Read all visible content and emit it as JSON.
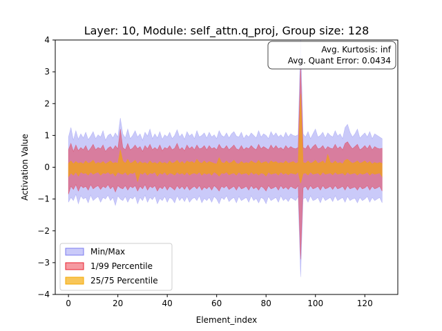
{
  "chart_data": {
    "type": "area",
    "title": "Layer: 10, Module: self_attn.q_proj,  Group size: 128",
    "xlabel": "Element_index",
    "ylabel": "Activation Value",
    "xlim": [
      -5.35,
      133.35
    ],
    "ylim": [
      -4,
      4
    ],
    "xticks": [
      0,
      20,
      40,
      60,
      80,
      100,
      120
    ],
    "yticks": [
      -4,
      -3,
      -2,
      -1,
      0,
      1,
      2,
      3,
      4
    ],
    "xtick_labels": [
      "0",
      "20",
      "40",
      "60",
      "80",
      "100",
      "120"
    ],
    "ytick_labels": [
      "−4",
      "−3",
      "−2",
      "−1",
      "0",
      "1",
      "2",
      "3",
      "4"
    ],
    "grid": false,
    "legend_position": "lower-left",
    "annotation": {
      "line1": "Avg. Kurtosis: inf",
      "line2": "Avg. Quant Error: 0.0434",
      "position": "top-right"
    },
    "series": [
      {
        "name": "Min/Max",
        "color": "#7b7bf0",
        "alpha": 0.4,
        "upper": [
          0.95,
          1.25,
          0.85,
          1.15,
          0.88,
          1.05,
          0.92,
          1.1,
          0.87,
          0.98,
          1.12,
          0.9,
          1.02,
          0.95,
          1.15,
          0.85,
          1.0,
          1.05,
          0.92,
          1.08,
          0.95,
          1.55,
          1.05,
          0.92,
          1.2,
          0.9,
          1.0,
          1.15,
          0.95,
          1.05,
          0.85,
          1.1,
          0.98,
          1.2,
          0.9,
          1.05,
          0.92,
          1.12,
          0.88,
          1.02,
          0.95,
          1.1,
          0.9,
          1.0,
          1.18,
          0.95,
          1.05,
          0.88,
          1.12,
          0.98,
          1.05,
          0.9,
          1.15,
          0.95,
          1.0,
          1.08,
          0.92,
          1.1,
          0.95,
          1.02,
          0.9,
          1.15,
          1.0,
          0.95,
          1.08,
          0.92,
          1.05,
          1.12,
          0.98,
          0.95,
          1.1,
          0.9,
          1.02,
          0.95,
          1.08,
          1.0,
          0.92,
          1.15,
          0.95,
          1.05,
          1.0,
          0.9,
          1.12,
          0.98,
          1.08,
          0.95,
          1.02,
          0.92,
          1.1,
          0.95,
          1.05,
          1.0,
          0.98,
          1.02,
          4.0,
          1.05,
          0.95,
          1.12,
          0.9,
          1.05,
          1.2,
          0.95,
          1.0,
          1.1,
          0.92,
          1.08,
          1.0,
          0.95,
          1.15,
          0.98,
          1.05,
          0.9,
          1.25,
          1.35,
          1.1,
          0.95,
          1.05,
          1.2,
          0.92,
          1.0,
          1.08,
          0.95,
          1.12,
          0.9,
          1.05,
          1.0,
          0.95,
          0.9
        ],
        "lower": [
          -1.1,
          -0.95,
          -1.05,
          -0.85,
          -1.15,
          -0.9,
          -1.0,
          -0.95,
          -1.12,
          -0.88,
          -1.05,
          -0.98,
          -0.92,
          -1.1,
          -0.95,
          -1.0,
          -0.88,
          -1.05,
          -0.95,
          -1.2,
          -0.9,
          -1.0,
          -1.05,
          -0.92,
          -1.1,
          -0.95,
          -1.0,
          -0.9,
          -1.15,
          -0.95,
          -1.05,
          -0.88,
          -1.1,
          -0.95,
          -1.02,
          -0.9,
          -1.15,
          -0.98,
          -1.05,
          -0.92,
          -1.1,
          -0.95,
          -1.0,
          -1.12,
          -0.9,
          -1.05,
          -0.95,
          -1.08,
          -0.92,
          -1.1,
          -1.0,
          -0.95,
          -1.05,
          -0.9,
          -1.12,
          -0.98,
          -1.05,
          -0.95,
          -1.1,
          -0.92,
          -1.0,
          -1.15,
          -0.95,
          -1.02,
          -0.9,
          -1.08,
          -1.0,
          -0.95,
          -1.12,
          -0.92,
          -1.05,
          -1.0,
          -0.95,
          -1.1,
          -0.9,
          -1.05,
          -0.98,
          -1.12,
          -0.95,
          -1.0,
          -1.15,
          -0.92,
          -1.05,
          -1.0,
          -0.95,
          -1.1,
          -0.9,
          -1.05,
          -0.98,
          -1.08,
          -0.95,
          -1.0,
          -1.05,
          -0.92,
          -3.45,
          -1.0,
          -0.95,
          -1.1,
          -0.9,
          -1.05,
          -1.02,
          -0.95,
          -1.12,
          -0.92,
          -1.05,
          -1.0,
          -0.95,
          -1.08,
          -0.9,
          -1.05,
          -1.0,
          -0.95,
          -1.1,
          -0.92,
          -1.05,
          -1.0,
          -0.98,
          -1.12,
          -0.95,
          -1.05,
          -1.0,
          -0.92,
          -1.1,
          -0.95,
          -1.05,
          -1.0,
          -0.95,
          -1.12
        ]
      },
      {
        "name": "1/99 Percentile",
        "color": "#e8202e",
        "alpha": 0.45,
        "upper": [
          0.55,
          0.75,
          0.5,
          0.7,
          0.52,
          0.62,
          0.55,
          0.68,
          0.5,
          0.6,
          0.72,
          0.55,
          0.62,
          0.58,
          0.7,
          0.5,
          0.6,
          0.65,
          0.55,
          0.68,
          0.58,
          1.2,
          0.62,
          0.55,
          0.75,
          0.55,
          0.6,
          0.7,
          0.58,
          0.65,
          0.5,
          0.68,
          0.58,
          0.72,
          0.55,
          0.62,
          0.55,
          0.7,
          0.52,
          0.62,
          0.58,
          0.68,
          0.55,
          0.6,
          0.75,
          0.55,
          0.62,
          0.52,
          0.7,
          0.58,
          0.65,
          0.55,
          0.7,
          0.58,
          0.6,
          0.68,
          0.55,
          0.68,
          0.58,
          0.62,
          0.55,
          0.72,
          0.6,
          0.58,
          0.68,
          0.55,
          0.62,
          0.7,
          0.58,
          0.55,
          0.68,
          0.55,
          0.62,
          0.58,
          0.68,
          0.6,
          0.55,
          0.72,
          0.58,
          0.65,
          0.6,
          0.55,
          0.7,
          0.58,
          0.68,
          0.58,
          0.62,
          0.55,
          0.68,
          0.58,
          0.65,
          0.6,
          0.58,
          0.62,
          3.2,
          0.62,
          0.58,
          0.7,
          0.55,
          0.65,
          0.72,
          0.58,
          0.6,
          0.68,
          0.55,
          0.65,
          0.6,
          0.58,
          0.72,
          0.58,
          0.65,
          0.55,
          0.75,
          0.8,
          0.68,
          0.58,
          0.65,
          0.72,
          0.55,
          0.6,
          0.68,
          0.58,
          0.7,
          0.55,
          0.65,
          0.6,
          0.58,
          0.6
        ],
        "lower": [
          -0.85,
          -0.6,
          -0.7,
          -0.55,
          -0.75,
          -0.58,
          -0.65,
          -0.6,
          -0.72,
          -0.55,
          -0.68,
          -0.62,
          -0.58,
          -0.7,
          -0.6,
          -0.65,
          -0.55,
          -0.68,
          -0.6,
          -0.78,
          -0.58,
          -0.65,
          -0.68,
          -0.58,
          -0.72,
          -0.6,
          -0.65,
          -0.58,
          -0.75,
          -0.6,
          -0.68,
          -0.55,
          -0.72,
          -0.6,
          -0.65,
          -0.58,
          -0.75,
          -0.62,
          -0.68,
          -0.58,
          -0.72,
          -0.6,
          -0.65,
          -0.72,
          -0.58,
          -0.68,
          -0.6,
          -0.7,
          -0.58,
          -0.72,
          -0.65,
          -0.6,
          -0.68,
          -0.58,
          -0.72,
          -0.62,
          -0.68,
          -0.6,
          -0.72,
          -0.58,
          -0.65,
          -0.75,
          -0.6,
          -0.65,
          -0.58,
          -0.7,
          -0.65,
          -0.6,
          -0.72,
          -0.58,
          -0.68,
          -0.65,
          -0.6,
          -0.72,
          -0.58,
          -0.68,
          -0.62,
          -0.72,
          -0.6,
          -0.65,
          -0.75,
          -0.58,
          -0.68,
          -0.65,
          -0.6,
          -0.72,
          -0.58,
          -0.68,
          -0.62,
          -0.7,
          -0.6,
          -0.65,
          -0.68,
          -0.58,
          -2.9,
          -0.65,
          -0.6,
          -0.72,
          -0.58,
          -0.68,
          -0.65,
          -0.6,
          -0.72,
          -0.58,
          -0.68,
          -0.65,
          -0.6,
          -0.7,
          -0.58,
          -0.68,
          -0.65,
          -0.6,
          -0.72,
          -0.58,
          -0.68,
          -0.65,
          -0.62,
          -0.72,
          -0.6,
          -0.68,
          -0.65,
          -0.58,
          -0.72,
          -0.6,
          -0.68,
          -0.65,
          -0.6,
          -0.75
        ]
      },
      {
        "name": "25/75 Percentile",
        "color": "#f5a800",
        "alpha": 0.65,
        "upper": [
          0.12,
          0.2,
          0.1,
          0.18,
          0.12,
          0.15,
          0.1,
          0.2,
          0.12,
          0.15,
          0.22,
          0.1,
          0.15,
          0.12,
          0.18,
          0.1,
          0.15,
          0.2,
          0.12,
          0.15,
          0.12,
          0.55,
          0.2,
          0.12,
          0.25,
          0.12,
          0.15,
          0.22,
          0.1,
          0.18,
          0.12,
          0.15,
          0.1,
          0.2,
          0.12,
          0.15,
          0.1,
          0.18,
          0.12,
          0.15,
          0.1,
          0.2,
          0.12,
          0.15,
          0.22,
          0.12,
          0.18,
          0.1,
          0.2,
          0.15,
          0.18,
          0.12,
          0.25,
          0.15,
          0.12,
          0.2,
          0.12,
          0.18,
          0.15,
          0.12,
          0.1,
          0.3,
          0.15,
          0.12,
          0.2,
          0.12,
          0.15,
          0.22,
          0.12,
          0.1,
          0.18,
          0.12,
          0.15,
          0.12,
          0.2,
          0.15,
          0.12,
          0.22,
          0.12,
          0.15,
          0.18,
          0.1,
          0.2,
          0.15,
          0.18,
          0.12,
          0.15,
          0.12,
          0.2,
          0.12,
          0.15,
          0.18,
          0.12,
          0.15,
          2.3,
          0.15,
          0.12,
          0.2,
          0.12,
          0.15,
          0.22,
          0.12,
          0.15,
          0.2,
          0.1,
          0.4,
          0.15,
          0.12,
          0.2,
          0.12,
          0.15,
          0.1,
          0.22,
          0.25,
          0.18,
          0.12,
          0.15,
          0.2,
          0.12,
          0.15,
          0.2,
          0.12,
          0.18,
          0.1,
          0.15,
          0.12,
          0.15,
          0.12
        ],
        "lower": [
          -0.3,
          -0.18,
          -0.25,
          -0.15,
          -0.28,
          -0.15,
          -0.2,
          -0.18,
          -0.25,
          -0.15,
          -0.22,
          -0.18,
          -0.15,
          -0.25,
          -0.18,
          -0.2,
          -0.15,
          -0.22,
          -0.18,
          -0.28,
          -0.15,
          -0.2,
          -0.22,
          -0.15,
          -0.25,
          -0.18,
          -0.2,
          -0.15,
          -0.45,
          -0.18,
          -0.22,
          -0.15,
          -0.25,
          -0.18,
          -0.2,
          -0.15,
          -0.28,
          -0.18,
          -0.22,
          -0.15,
          -0.25,
          -0.18,
          -0.2,
          -0.25,
          -0.15,
          -0.22,
          -0.18,
          -0.24,
          -0.15,
          -0.25,
          -0.2,
          -0.18,
          -0.22,
          -0.15,
          -0.25,
          -0.18,
          -0.22,
          -0.18,
          -0.25,
          -0.15,
          -0.2,
          -0.28,
          -0.18,
          -0.2,
          -0.15,
          -0.24,
          -0.2,
          -0.18,
          -0.25,
          -0.15,
          -0.22,
          -0.2,
          -0.18,
          -0.25,
          -0.15,
          -0.22,
          -0.18,
          -0.25,
          -0.18,
          -0.2,
          -0.28,
          -0.15,
          -0.22,
          -0.2,
          -0.18,
          -0.25,
          -0.15,
          -0.22,
          -0.18,
          -0.24,
          -0.18,
          -0.2,
          -0.22,
          -0.15,
          -0.5,
          -0.2,
          -0.18,
          -0.25,
          -0.15,
          -0.22,
          -0.2,
          -0.18,
          -0.25,
          -0.15,
          -0.22,
          -0.2,
          -0.18,
          -0.24,
          -0.15,
          -0.22,
          -0.2,
          -0.18,
          -0.25,
          -0.15,
          -0.22,
          -0.2,
          -0.18,
          -0.25,
          -0.18,
          -0.22,
          -0.2,
          -0.15,
          -0.25,
          -0.18,
          -0.22,
          -0.2,
          -0.18,
          -0.3
        ]
      }
    ]
  }
}
